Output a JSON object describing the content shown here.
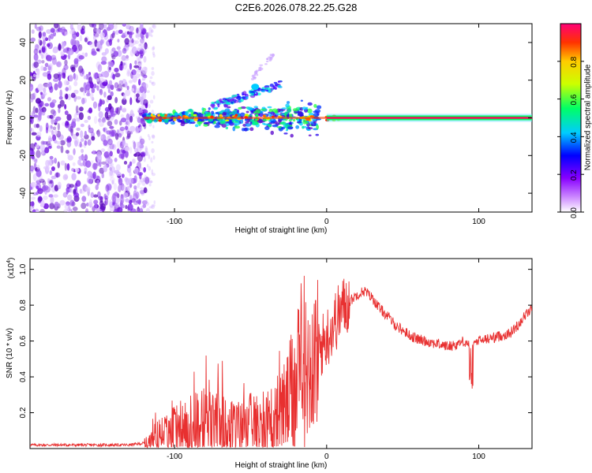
{
  "title": "C2E6.2026.078.22.25.G28",
  "chart_data": [
    {
      "type": "heatmap",
      "name": "spectrogram",
      "xlabel": "Height of straight line (km)",
      "ylabel": "Frequency (Hz)",
      "xlim": [
        -195,
        135
      ],
      "ylim": [
        -50,
        50
      ],
      "xticks": [
        -100,
        0,
        100
      ],
      "xtick_labels": [
        "-100",
        "0",
        "100"
      ],
      "yticks": [
        -40,
        -20,
        0,
        20,
        40
      ],
      "ytick_labels": [
        "-40",
        "-20",
        "0",
        "20",
        "40"
      ],
      "colorbar": {
        "label": "Normalized spectral amplitude",
        "range": [
          0,
          1
        ],
        "ticks": [
          0.0,
          0.2,
          0.4,
          0.6,
          0.8
        ],
        "tick_labels": [
          "0.0",
          "0.2",
          "0.4",
          "0.6",
          "0.8"
        ],
        "colormap": [
          "#ffffff",
          "#8800ff",
          "#0000ff",
          "#00ccff",
          "#00ff66",
          "#ccff00",
          "#ffcc00",
          "#ff3300",
          "#ff0077"
        ]
      },
      "features": {
        "noise_region_km": [
          -195,
          -118
        ],
        "main_track_hz": 0,
        "main_track_km": [
          -120,
          135
        ],
        "branch_hz_range": [
          8,
          32
        ],
        "branch_km_range": [
          -65,
          -20
        ]
      }
    },
    {
      "type": "line",
      "name": "snr",
      "xlabel": "Height of straight line (km)",
      "ylabel": "SNR (10 * v/v)",
      "y_multiplier_label": "(x10",
      "y_multiplier_exp": "4",
      "xlim": [
        -195,
        135
      ],
      "ylim": [
        0,
        1.06
      ],
      "xticks": [
        -100,
        0,
        100
      ],
      "xtick_labels": [
        "-100",
        "0",
        "100"
      ],
      "yticks": [
        0.2,
        0.4,
        0.6,
        0.8,
        1.0
      ],
      "ytick_labels": [
        "0.2",
        "0.4",
        "0.6",
        "0.8",
        "1.0"
      ],
      "series": [
        {
          "name": "SNR",
          "color": "#e83030",
          "x": [
            -195,
            -170,
            -150,
            -130,
            -120,
            -110,
            -100,
            -90,
            -80,
            -70,
            -60,
            -50,
            -40,
            -30,
            -25,
            -20,
            -15,
            -10,
            -5,
            0,
            5,
            10,
            15,
            20,
            25,
            30,
            35,
            40,
            45,
            50,
            55,
            60,
            65,
            70,
            75,
            80,
            85,
            90,
            95,
            100,
            105,
            110,
            115,
            120,
            125,
            130,
            135
          ],
          "values": [
            0.02,
            0.02,
            0.02,
            0.02,
            0.03,
            0.07,
            0.1,
            0.13,
            0.14,
            0.13,
            0.12,
            0.13,
            0.15,
            0.2,
            0.26,
            0.35,
            0.42,
            0.5,
            0.55,
            0.62,
            0.7,
            0.78,
            0.82,
            0.86,
            0.88,
            0.84,
            0.78,
            0.74,
            0.69,
            0.66,
            0.63,
            0.61,
            0.6,
            0.59,
            0.58,
            0.57,
            0.58,
            0.6,
            0.58,
            0.6,
            0.61,
            0.62,
            0.63,
            0.64,
            0.68,
            0.74,
            0.78
          ]
        }
      ]
    }
  ]
}
